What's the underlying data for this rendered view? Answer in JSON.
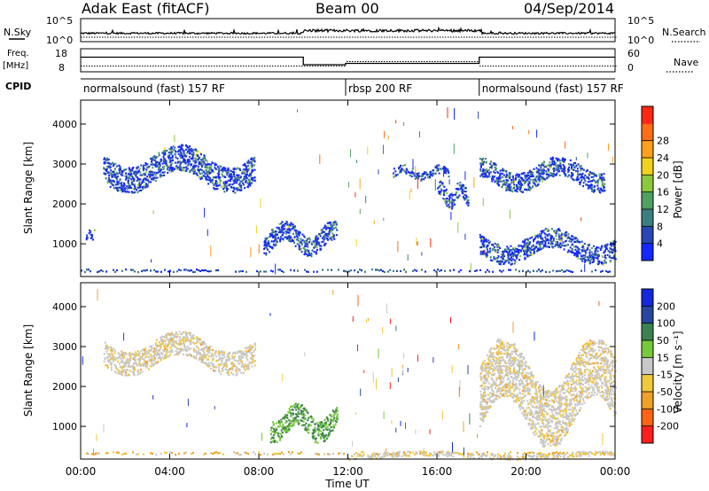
{
  "header": {
    "title_left": "Adak East (fitACF)",
    "title_center": "Beam 00",
    "title_right": "04/Sep/2014"
  },
  "top_panels": {
    "nsky": {
      "label": "N.Sky",
      "tick_top": "10^5",
      "tick_bottom": "10^0"
    },
    "nsearch": {
      "label": "N.Search",
      "tick_top": "10^5",
      "tick_bottom": "10^0"
    },
    "freq": {
      "label_line1": "Freq.",
      "label_line2": "[MHz]",
      "tick_top": "18",
      "tick_bottom": "8"
    },
    "nave": {
      "label": "Nave",
      "tick_top": "60",
      "tick_bottom": "0"
    },
    "cpid": {
      "label": "CPID",
      "segments": [
        {
          "start_hour": 0,
          "end_hour": 11.9,
          "label": "normalsound (fast) 157 RF"
        },
        {
          "start_hour": 11.9,
          "end_hour": 17.9,
          "label": "rbsp 200 RF"
        },
        {
          "start_hour": 17.9,
          "end_hour": 24,
          "label": "normalsound (fast) 157 RF"
        }
      ]
    }
  },
  "chart_data": [
    {
      "type": "heatmap",
      "title": "",
      "xlabel": "Time UT",
      "ylabel": "Slant Range [km]",
      "xlim": [
        0,
        24
      ],
      "ylim": [
        180,
        4600
      ],
      "x_ticks": [
        "00:00",
        "04:00",
        "08:00",
        "12:00",
        "16:00",
        "20:00",
        "00:00"
      ],
      "y_ticks": [
        1000,
        2000,
        3000,
        4000
      ],
      "colorbar": {
        "label": "Power [dB]",
        "ticks": [
          "4",
          "8",
          "12",
          "16",
          "20",
          "24",
          "28"
        ],
        "colors": [
          "#1428ff",
          "#2846b4",
          "#3c7d82",
          "#50a064",
          "#8cc83c",
          "#f0d21e",
          "#ffa01e",
          "#ff6e14",
          "#ff2814"
        ]
      },
      "echo_regions": [
        {
          "t_start": 1.0,
          "t_end": 7.8,
          "range_low": 2300,
          "range_high": 3500,
          "level": "4-20"
        },
        {
          "t_start": 0.2,
          "t_end": 0.6,
          "range_low": 1100,
          "range_high": 1400,
          "level": "4-8"
        },
        {
          "t_start": 8.2,
          "t_end": 11.5,
          "range_low": 700,
          "range_high": 1600,
          "level": "4-16"
        },
        {
          "t_start": 14.0,
          "t_end": 16.5,
          "range_low": 2600,
          "range_high": 3000,
          "level": "4-8"
        },
        {
          "t_start": 16.0,
          "t_end": 17.4,
          "range_low": 1900,
          "range_high": 2600,
          "level": "4-16"
        },
        {
          "t_start": 17.9,
          "t_end": 23.5,
          "range_low": 2300,
          "range_high": 3200,
          "level": "4-8"
        },
        {
          "t_start": 17.9,
          "t_end": 24.0,
          "range_low": 500,
          "range_high": 1400,
          "level": "4-12"
        }
      ]
    },
    {
      "type": "heatmap",
      "title": "",
      "xlabel": "Time UT",
      "ylabel": "Slant Range [km]",
      "xlim": [
        0,
        24
      ],
      "ylim": [
        180,
        4600
      ],
      "x_ticks": [
        "00:00",
        "04:00",
        "08:00",
        "12:00",
        "16:00",
        "20:00",
        "00:00"
      ],
      "y_ticks": [
        1000,
        2000,
        3000,
        4000
      ],
      "colorbar": {
        "label": "Velocity [m s⁻¹]",
        "ticks": [
          "200",
          "100",
          "50",
          "15",
          "-15",
          "-50",
          "-100",
          "-200"
        ],
        "colors": [
          "#1428dc",
          "#2846a0",
          "#3c8250",
          "#78c83c",
          "#c8c8c8",
          "#f0c83c",
          "#f0a028",
          "#ff6414",
          "#ff1e1e"
        ]
      },
      "echo_regions": [
        {
          "t_start": 1.0,
          "t_end": 7.8,
          "range_low": 2300,
          "range_high": 3400,
          "level": "-15 to 15 / -50"
        },
        {
          "t_start": 8.5,
          "t_end": 11.5,
          "range_low": 600,
          "range_high": 1600,
          "level": "15 to 100"
        },
        {
          "t_start": 12.0,
          "t_end": 24.0,
          "range_low": 180,
          "range_high": 400,
          "level": "-50"
        },
        {
          "t_start": 17.9,
          "t_end": 24.0,
          "range_low": 500,
          "range_high": 3200,
          "level": "-15 to 15"
        }
      ]
    }
  ],
  "bottom_axis_label": "Time UT"
}
